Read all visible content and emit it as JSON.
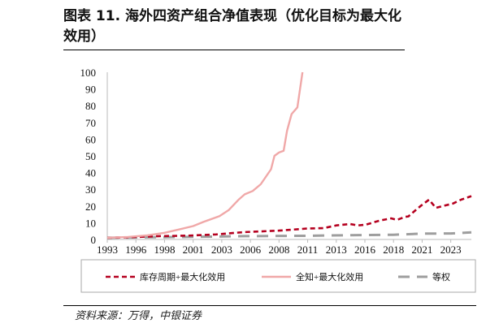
{
  "title": "图表 11. 海外四资产组合净值表现（优化目标为最大化效用）",
  "source": "资料来源：万得，中银证券",
  "chart_data": {
    "type": "line",
    "title": "",
    "xlabel": "",
    "ylabel": "",
    "ylim": [
      0,
      100
    ],
    "yticks": [
      0,
      10,
      20,
      30,
      40,
      50,
      60,
      70,
      80,
      90,
      100
    ],
    "xlim": [
      1993,
      2024.8
    ],
    "x_tick_labels": [
      "1993",
      "1996",
      "1998",
      "2001",
      "2003",
      "2006",
      "2008",
      "2011",
      "2013",
      "2016",
      "2018",
      "2021",
      "2023"
    ],
    "grid": false,
    "legend": "bottom",
    "series": [
      {
        "name": "库存周期+最大化效用",
        "color": "#b5001f",
        "style": "dashed",
        "points": [
          [
            1993,
            1
          ],
          [
            1995,
            1.3
          ],
          [
            1997.5,
            2
          ],
          [
            2000,
            2.3
          ],
          [
            2002.5,
            3
          ],
          [
            2004.2,
            4
          ],
          [
            2005,
            4.4
          ],
          [
            2008,
            5.3
          ],
          [
            2010.4,
            6.5
          ],
          [
            2011.9,
            6.8
          ],
          [
            2013,
            8.4
          ],
          [
            2014.2,
            9.2
          ],
          [
            2014.9,
            8.4
          ],
          [
            2015.6,
            8.9
          ],
          [
            2016.8,
            11.3
          ],
          [
            2017.8,
            12.6
          ],
          [
            2018.3,
            11.7
          ],
          [
            2019,
            13.5
          ],
          [
            2019.3,
            13.8
          ],
          [
            2019.7,
            16.2
          ],
          [
            2020.4,
            20.2
          ],
          [
            2021.1,
            23.8
          ],
          [
            2021.7,
            18.9
          ],
          [
            2022.2,
            19.8
          ],
          [
            2023.2,
            21.5
          ],
          [
            2023.9,
            23.8
          ],
          [
            2024.8,
            25.9
          ]
        ]
      },
      {
        "name": "全知+最大化效用",
        "color": "#f0a8a8",
        "style": "solid",
        "points": [
          [
            1993,
            1
          ],
          [
            1994.8,
            1.5
          ],
          [
            1996.5,
            2.5
          ],
          [
            1998,
            4
          ],
          [
            1999.3,
            6
          ],
          [
            2000.5,
            8
          ],
          [
            2001.4,
            10.5
          ],
          [
            2002.8,
            14
          ],
          [
            2003.6,
            17.5
          ],
          [
            2004.5,
            24
          ],
          [
            2005,
            27
          ],
          [
            2005.7,
            29
          ],
          [
            2006.4,
            33
          ],
          [
            2007.3,
            42
          ],
          [
            2007.6,
            50
          ],
          [
            2008,
            52
          ],
          [
            2008.4,
            53
          ],
          [
            2008.7,
            65
          ],
          [
            2009.1,
            75
          ],
          [
            2009.6,
            79
          ],
          [
            2010.05,
            100
          ]
        ]
      },
      {
        "name": "等权",
        "color": "#9e9e9e",
        "style": "longdash",
        "points": [
          [
            1993,
            1
          ],
          [
            2000,
            1.5
          ],
          [
            2005,
            2
          ],
          [
            2010,
            2.2
          ],
          [
            2015,
            2.6
          ],
          [
            2018,
            2.8
          ],
          [
            2020.5,
            3.5
          ],
          [
            2023,
            3.6
          ],
          [
            2024.8,
            4.2
          ]
        ]
      }
    ]
  }
}
